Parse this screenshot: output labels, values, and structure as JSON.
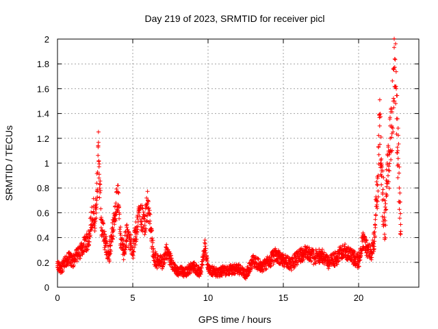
{
  "chart_data": {
    "type": "scatter",
    "title": "Day 219 of 2023, SRMTID for receiver picl",
    "xlabel": "GPS time / hours",
    "ylabel": "SRMTID / TECUs",
    "xlim": [
      0,
      24
    ],
    "ylim": [
      0,
      2
    ],
    "xticks": [
      0,
      5,
      10,
      15,
      20
    ],
    "yticks": [
      0,
      0.2,
      0.4,
      0.6,
      0.8,
      1,
      1.2,
      1.4,
      1.6,
      1.8,
      2
    ],
    "xtick_labels": [
      "0",
      "5",
      "10",
      "15",
      "20"
    ],
    "ytick_labels": [
      "0",
      "0.2",
      "0.4",
      "0.6",
      "0.8",
      "1",
      "1.2",
      "1.4",
      "1.6",
      "1.8",
      "2"
    ],
    "grid": true,
    "marker": "+",
    "color": "#ff0000",
    "series": [
      {
        "name": "SRMTID",
        "x": [
          0.0,
          0.2,
          0.4,
          0.6,
          0.8,
          1.0,
          1.2,
          1.4,
          1.6,
          1.8,
          2.0,
          2.2,
          2.4,
          2.5,
          2.6,
          2.7,
          2.8,
          2.9,
          3.0,
          3.2,
          3.4,
          3.6,
          3.8,
          4.0,
          4.1,
          4.2,
          4.4,
          4.6,
          4.8,
          5.0,
          5.2,
          5.4,
          5.6,
          5.8,
          6.0,
          6.2,
          6.4,
          6.6,
          6.8,
          7.0,
          7.2,
          7.4,
          7.6,
          7.8,
          8.0,
          8.5,
          9.0,
          9.5,
          9.8,
          10.0,
          10.5,
          11.0,
          11.5,
          12.0,
          12.5,
          13.0,
          13.5,
          14.0,
          14.5,
          15.0,
          15.5,
          16.0,
          16.5,
          17.0,
          17.5,
          18.0,
          18.5,
          19.0,
          19.5,
          20.0,
          20.3,
          20.6,
          20.9,
          21.0,
          21.1,
          21.2,
          21.3,
          21.4,
          21.5,
          21.6,
          21.7,
          21.8,
          21.9,
          22.0,
          22.1,
          22.2,
          22.3,
          22.4,
          22.5,
          22.6,
          22.7,
          22.8
        ],
        "y": [
          0.19,
          0.15,
          0.18,
          0.22,
          0.24,
          0.2,
          0.27,
          0.26,
          0.3,
          0.38,
          0.35,
          0.5,
          0.6,
          0.55,
          0.7,
          1.14,
          0.8,
          0.55,
          0.45,
          0.35,
          0.25,
          0.4,
          0.55,
          0.77,
          0.6,
          0.35,
          0.3,
          0.42,
          0.38,
          0.3,
          0.45,
          0.6,
          0.55,
          0.5,
          0.7,
          0.45,
          0.25,
          0.2,
          0.22,
          0.18,
          0.3,
          0.25,
          0.2,
          0.15,
          0.13,
          0.12,
          0.17,
          0.11,
          0.33,
          0.14,
          0.12,
          0.13,
          0.14,
          0.15,
          0.1,
          0.21,
          0.17,
          0.2,
          0.26,
          0.22,
          0.18,
          0.25,
          0.28,
          0.24,
          0.26,
          0.2,
          0.23,
          0.3,
          0.25,
          0.21,
          0.38,
          0.3,
          0.28,
          0.35,
          0.5,
          0.7,
          0.9,
          1.3,
          1.0,
          0.75,
          0.6,
          0.5,
          1.0,
          0.85,
          1.2,
          1.3,
          1.5,
          1.84,
          1.6,
          1.1,
          0.8,
          0.45
        ],
        "spread": [
          0.04,
          0.04,
          0.05,
          0.05,
          0.05,
          0.05,
          0.06,
          0.06,
          0.07,
          0.08,
          0.08,
          0.1,
          0.12,
          0.12,
          0.14,
          0.18,
          0.15,
          0.12,
          0.1,
          0.08,
          0.07,
          0.09,
          0.1,
          0.13,
          0.12,
          0.09,
          0.08,
          0.09,
          0.08,
          0.08,
          0.1,
          0.12,
          0.11,
          0.1,
          0.13,
          0.1,
          0.07,
          0.06,
          0.06,
          0.05,
          0.06,
          0.06,
          0.05,
          0.04,
          0.04,
          0.04,
          0.04,
          0.04,
          0.06,
          0.04,
          0.04,
          0.04,
          0.04,
          0.04,
          0.04,
          0.05,
          0.05,
          0.05,
          0.06,
          0.05,
          0.05,
          0.06,
          0.06,
          0.06,
          0.06,
          0.05,
          0.06,
          0.06,
          0.06,
          0.06,
          0.07,
          0.07,
          0.07,
          0.08,
          0.12,
          0.18,
          0.22,
          0.25,
          0.25,
          0.22,
          0.2,
          0.18,
          0.25,
          0.25,
          0.28,
          0.3,
          0.32,
          0.3,
          0.3,
          0.25,
          0.2,
          0.12
        ]
      }
    ],
    "points_per_hour": 60
  }
}
